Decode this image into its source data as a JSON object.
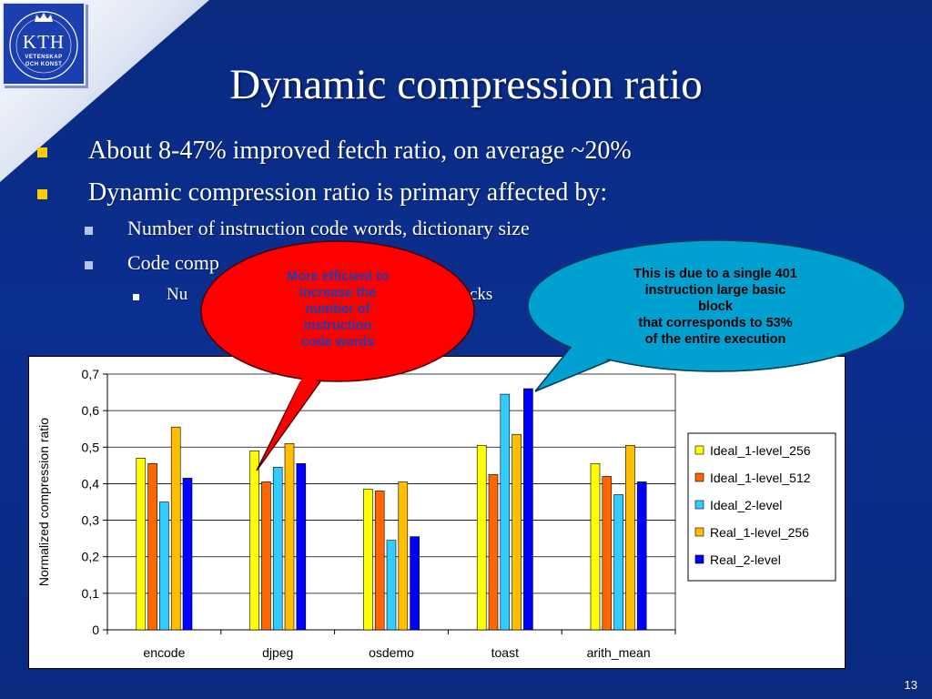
{
  "logo": {
    "name": "KTH",
    "line1": "VETENSKAP",
    "line2": "OCH KONST"
  },
  "title": "Dynamic compression ratio",
  "bullets": {
    "b1": "About 8-47% improved fetch ratio, on average ~20%",
    "b2": "Dynamic compression ratio is primary affected by:",
    "b2a": "Number of instruction code words, dictionary size",
    "b2b": "Code comp",
    "b2b1_start": "Nu",
    "b2b1_end": "cks"
  },
  "callouts": {
    "red": {
      "lines": [
        "More efficient to",
        "increase the",
        "number of",
        "instruction",
        "code words"
      ],
      "fill": "#ff0000",
      "text_color": "#1f3fae"
    },
    "blue": {
      "lines": [
        "This is due to a single 401",
        "instruction large basic",
        "block",
        "that corresponds to 53%",
        "of the entire execution"
      ],
      "fill": "#00a0d0",
      "text_color": "#000000"
    }
  },
  "chart_data": {
    "type": "bar",
    "categories": [
      "encode",
      "djpeg",
      "osdemo",
      "toast",
      "arith_mean"
    ],
    "series": [
      {
        "name": "Ideal_1-level_256",
        "color": "#ffff00",
        "values": [
          0.47,
          0.49,
          0.385,
          0.505,
          0.455
        ]
      },
      {
        "name": "Ideal_1-level_512",
        "color": "#ff6600",
        "values": [
          0.455,
          0.405,
          0.38,
          0.425,
          0.42
        ]
      },
      {
        "name": "Ideal_2-level",
        "color": "#33ccff",
        "values": [
          0.35,
          0.445,
          0.245,
          0.645,
          0.37
        ]
      },
      {
        "name": "Real_1-level_256",
        "color": "#ffbf00",
        "values": [
          0.555,
          0.51,
          0.405,
          0.535,
          0.505
        ]
      },
      {
        "name": "Real_2-level",
        "color": "#0000ff",
        "values": [
          0.415,
          0.455,
          0.255,
          0.66,
          0.405
        ]
      }
    ],
    "ylabel": "Normalized compression ratio",
    "ylim": [
      0,
      0.7
    ],
    "yticks": [
      "0",
      "0,1",
      "0,2",
      "0,3",
      "0,4",
      "0,5",
      "0,6",
      "0,7"
    ],
    "legend": "right",
    "grid": true
  },
  "page_number": "13"
}
